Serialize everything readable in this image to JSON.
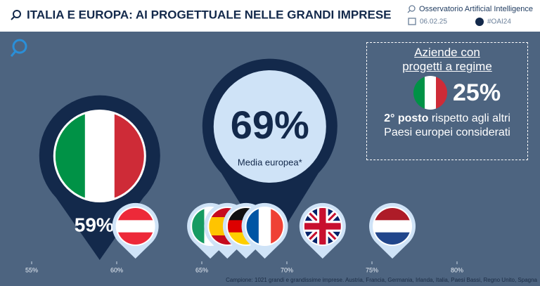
{
  "header": {
    "title": "ITALIA E EUROPA: AI PROGETTUALE NELLE GRANDI IMPRESE",
    "source": "Osservatorio Artificial Intelligence",
    "date": "06.02.25",
    "tag": "#OAI24"
  },
  "chart_data": {
    "type": "dot",
    "xlim": [
      55,
      80
    ],
    "xticks": [
      {
        "value": 55,
        "label": "55%"
      },
      {
        "value": 60,
        "label": "60%"
      },
      {
        "value": 65,
        "label": "65%"
      },
      {
        "value": 70,
        "label": "70%"
      },
      {
        "value": 75,
        "label": "75%"
      },
      {
        "value": 80,
        "label": "80%"
      }
    ],
    "highlight": {
      "value": 59,
      "label": "59%"
    },
    "average": {
      "value": 69,
      "label": "69%",
      "caption": "Media europea*"
    },
    "values": [
      61.1,
      65.5,
      66.5,
      67.6,
      68.7,
      72.1,
      76.2
    ],
    "note": "Campione: 1021 grandi e grandissime imprese. Austria, Francia, Germania, Irlanda, Italia, Paesi Bassi, Regno Unito, Spagna"
  },
  "callout": {
    "title": "Aziende con progetti a regime",
    "value": 25,
    "value_label": "25%",
    "bold": "2° posto",
    "text": "rispetto agli altri Paesi europei considerati"
  }
}
